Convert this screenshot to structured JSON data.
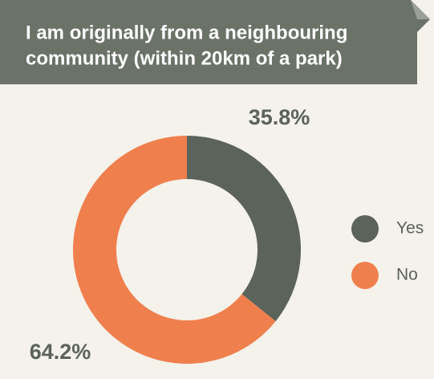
{
  "chart_data": {
    "type": "donut",
    "title_lines": [
      "I am originally from a neighbouring",
      "community (within 20km of a park)"
    ],
    "categories": [
      "Yes",
      "No"
    ],
    "values": [
      35.8,
      64.2
    ],
    "value_labels": [
      "35.8%",
      "64.2%"
    ],
    "colors": [
      "#5b635a",
      "#f07f4e"
    ],
    "legend": "right"
  }
}
